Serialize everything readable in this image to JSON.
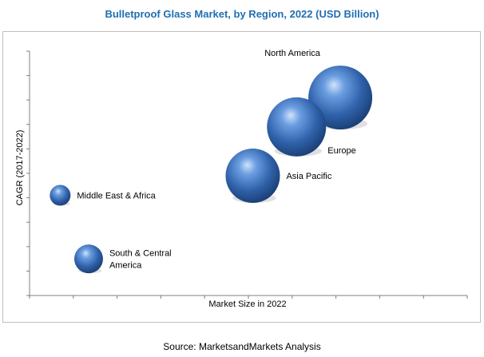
{
  "chart_data": {
    "type": "bubble",
    "title": "Bulletproof Glass Market, by Region, 2022 (USD Billion)",
    "xlabel": "Market Size in 2022",
    "ylabel": "CAGR (2017-2022)",
    "xlim": [
      0,
      10
    ],
    "ylim": [
      0,
      10
    ],
    "x_ticks": 10,
    "y_ticks": 10,
    "grid": false,
    "legend": "none",
    "bubble_color": "#3a6fb5",
    "points": [
      {
        "label": "North America",
        "x": 7.1,
        "y": 8.1,
        "size": 40,
        "label_lines": [
          "North America"
        ],
        "label_pos": "above-left"
      },
      {
        "label": "Europe",
        "x": 6.1,
        "y": 6.9,
        "size": 37,
        "label_lines": [
          "Europe"
        ],
        "label_pos": "below-right"
      },
      {
        "label": "Asia Pacific",
        "x": 5.1,
        "y": 4.9,
        "size": 34,
        "label_lines": [
          "Asia Pacific"
        ],
        "label_pos": "right"
      },
      {
        "label": "Middle East & Africa",
        "x": 0.7,
        "y": 4.1,
        "size": 13,
        "label_lines": [
          "Middle East & Africa"
        ],
        "label_pos": "right"
      },
      {
        "label": "South & Central America",
        "x": 1.35,
        "y": 1.5,
        "size": 18,
        "label_lines": [
          "South & Central",
          "America"
        ],
        "label_pos": "right"
      }
    ]
  },
  "source": "Source: MarketsandMarkets Analysis"
}
